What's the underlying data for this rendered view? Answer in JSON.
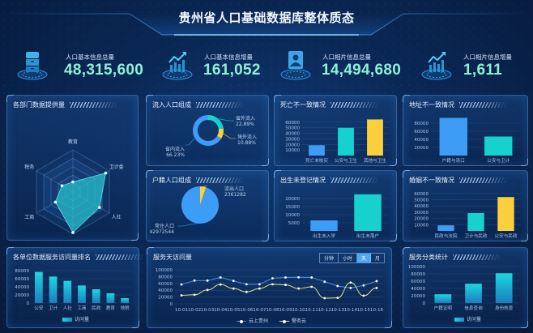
{
  "header": {
    "title": "贵州省人口基础数据库整体质态"
  },
  "kpis": [
    {
      "label": "人口基本信息总量",
      "value": "48,315,600",
      "icon": "database-icon"
    },
    {
      "label": "人口基本信息增量",
      "value": "161,052",
      "icon": "trend-up-icon"
    },
    {
      "label": "人口相片信息总量",
      "value": "14,494,680",
      "icon": "portrait-icon"
    },
    {
      "label": "人口相片信息增量",
      "value": "1,611",
      "icon": "trend-up-icon"
    }
  ],
  "time_switch": {
    "options": [
      "分钟",
      "小时",
      "天",
      "月"
    ],
    "selected": "天"
  },
  "colors": {
    "blue": "#3d9cf5",
    "teal": "#17d1cf",
    "yellow": "#fcd03c",
    "kpi_value": "#8ff0d6"
  },
  "chart_data": [
    {
      "type": "radar",
      "title": "各部门数据提供量",
      "indicators": [
        "教育",
        "卫计委",
        "人社",
        "公安",
        "工商",
        "税务"
      ],
      "values": [
        24,
        90,
        73,
        96,
        48,
        30
      ],
      "max": 100
    },
    {
      "type": "pie",
      "variant": "donut",
      "title": "流入人口组成",
      "slices": [
        {
          "label": "省外流入",
          "value": 22.89,
          "display": "22.89%",
          "color": "#17d1cf"
        },
        {
          "label": "境外流入",
          "value": 10.88,
          "display": "10.88%",
          "color": "#fcd03c"
        },
        {
          "label": "省内流入",
          "value": 66.23,
          "display": "66.23%",
          "color": "#3d9cf5"
        }
      ]
    },
    {
      "type": "pie",
      "title": "户籍人口组成",
      "slices": [
        {
          "label": "流出人口",
          "value": 2361282,
          "display": "2361282",
          "color": "#fcd03c"
        },
        {
          "label": "常住人口",
          "value": 42972544,
          "display": "42972544",
          "color": "#3d9cf5"
        }
      ]
    },
    {
      "type": "bar",
      "title": "死亡不一致情况",
      "categories": [
        "死亡未核实",
        "公安与卫生",
        "其他与卫生"
      ],
      "values": [
        18600,
        50000,
        65000
      ],
      "colors": [
        "#3d9cf5",
        "#17d1cf",
        "#fcd03c"
      ],
      "yticks": [
        "10000",
        "20000",
        "30000",
        "40000",
        "50000",
        "60000"
      ],
      "ylim": [
        0,
        70000
      ],
      "grid": true
    },
    {
      "type": "bar",
      "title": "出生未登记情况",
      "categories": [
        "出生未入学",
        "出生未落户"
      ],
      "values": [
        6500,
        22600
      ],
      "colors": [
        "#3d9cf5",
        "#17d1cf"
      ],
      "yticks": [
        "5000",
        "10000",
        "15000",
        "20000"
      ],
      "ylim": [
        0,
        25000
      ],
      "grid": true
    },
    {
      "type": "bar",
      "title": "地址不一致情况",
      "categories": [
        "户籍与流口",
        "公安与卫计"
      ],
      "values": [
        93000,
        47000
      ],
      "colors": [
        "#3d9cf5",
        "#17d1cf"
      ],
      "yticks": [
        "20000",
        "40000",
        "60000",
        "80000"
      ],
      "ylim": [
        0,
        100000
      ],
      "grid": true
    },
    {
      "type": "bar",
      "title": "婚姻不一致情况",
      "categories": [
        "民政与法院",
        "卫计与民政",
        "公安与民政"
      ],
      "values": [
        9000,
        28600,
        54300
      ],
      "colors": [
        "#3d9cf5",
        "#17d1cf",
        "#fcd03c"
      ],
      "yticks": [
        "10000",
        "20000",
        "30000",
        "40000",
        "50000",
        "60000"
      ],
      "ylim": [
        0,
        65000
      ],
      "grid": true
    },
    {
      "type": "bar",
      "title": "各单位数据服务访问量排名",
      "categories": [
        "公安",
        "卫计",
        "人社",
        "工商",
        "民政",
        "教育",
        "地税"
      ],
      "values": [
        76700,
        65300,
        54700,
        43300,
        34000,
        24000,
        12000
      ],
      "series_name": "访问量",
      "gradient": [
        "#1cd6e0",
        "#1a7fc0"
      ],
      "yticks": [
        "0",
        "20000",
        "40000",
        "60000",
        "80000"
      ],
      "ylim": [
        0,
        90000
      ],
      "grid": true
    },
    {
      "type": "line",
      "title": "服务天访问量",
      "x": [
        "10-01",
        "10-02",
        "10-03",
        "10-04",
        "10-05",
        "10-06",
        "10-07",
        "10-08",
        "10-09",
        "10-10",
        "10-11",
        "10-12",
        "10-13",
        "10-14",
        "10-15",
        "10-16"
      ],
      "series": [
        {
          "name": "云上贵州",
          "color": "#4f8fe6",
          "smooth": false,
          "values": [
            56700,
            68300,
            68300,
            77500,
            67500,
            57500,
            57500,
            75000,
            77500,
            78000,
            77500,
            65000,
            52500,
            46700,
            54000,
            66700
          ]
        },
        {
          "name": "警务云",
          "color": "#d8e68a",
          "smooth": true,
          "values": [
            25000,
            26700,
            40800,
            56700,
            45000,
            35000,
            45000,
            57500,
            55800,
            45000,
            50000,
            16700,
            17500,
            62500,
            24000,
            46700
          ]
        }
      ],
      "yticks": [
        "0",
        "20000",
        "40000",
        "60000",
        "80000",
        "100000"
      ],
      "ylim": [
        0,
        100000
      ],
      "grid": true,
      "legend": "bottom"
    },
    {
      "type": "bar",
      "title": "服务分类统计",
      "categories": [
        "户籍证明",
        "信息查询",
        "身份核查"
      ],
      "values": [
        24000,
        53000,
        81700
      ],
      "series_name": "访问量",
      "gradient": [
        "#1cd6e0",
        "#1a7fc0"
      ],
      "yticks": [
        "0",
        "20000",
        "40000",
        "60000",
        "80000",
        "100000"
      ],
      "ylim": [
        0,
        100000
      ],
      "grid": true
    }
  ]
}
